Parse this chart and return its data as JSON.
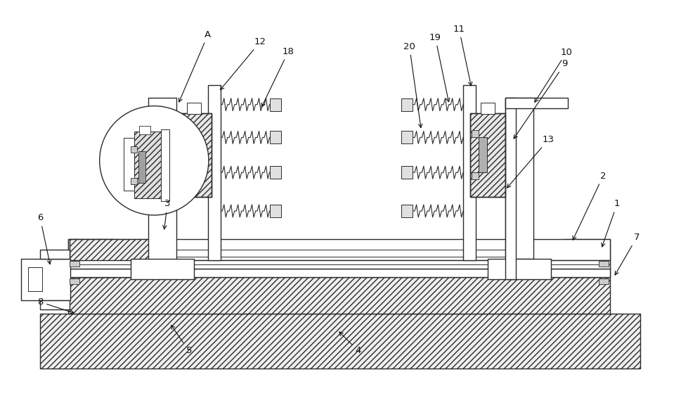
{
  "bg_color": "#ffffff",
  "lc": "#2a2a2a",
  "figsize": [
    9.7,
    5.73
  ],
  "dpi": 100
}
